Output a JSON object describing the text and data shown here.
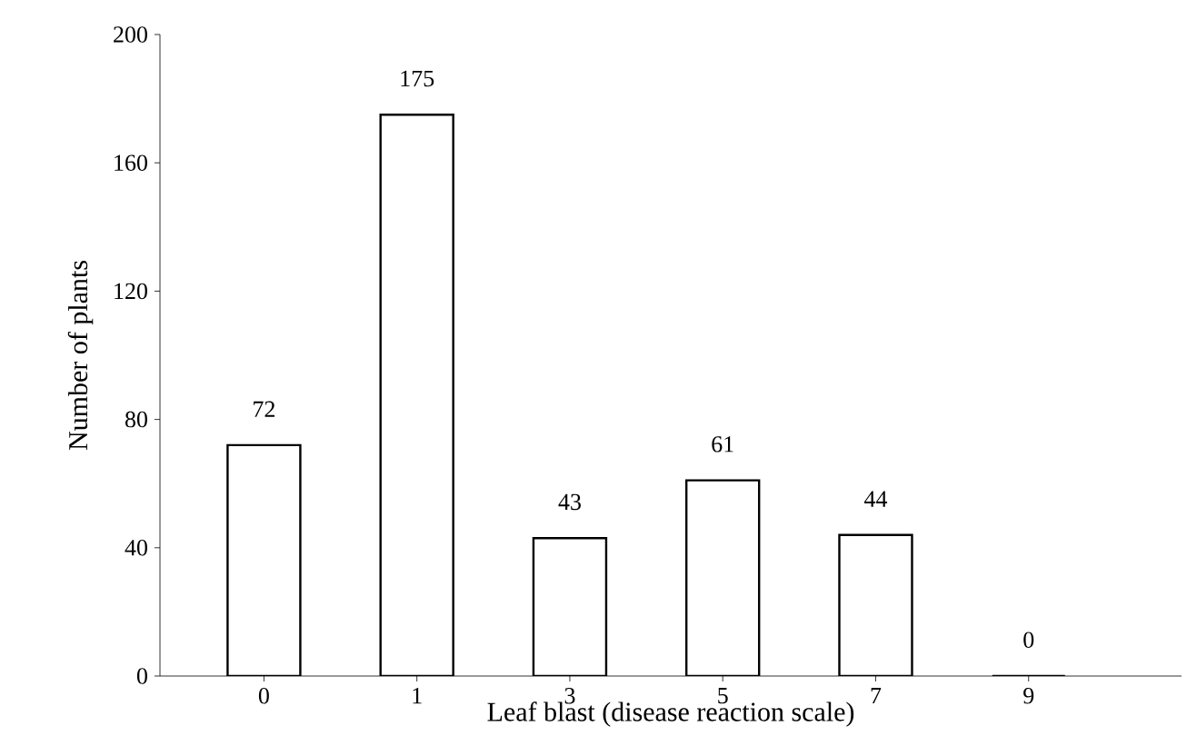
{
  "chart_data": {
    "type": "bar",
    "xlabel": "Leaf blast (disease reaction scale)",
    "ylabel": "Number of plants",
    "categories": [
      "0",
      "1",
      "3",
      "5",
      "7",
      "9"
    ],
    "values": [
      72,
      175,
      43,
      61,
      44,
      0
    ],
    "color": "#ffffff",
    "ylim": [
      0,
      200
    ],
    "yticks": [
      0,
      40,
      80,
      120,
      160,
      200
    ],
    "data_labels": true,
    "grid": false
  }
}
